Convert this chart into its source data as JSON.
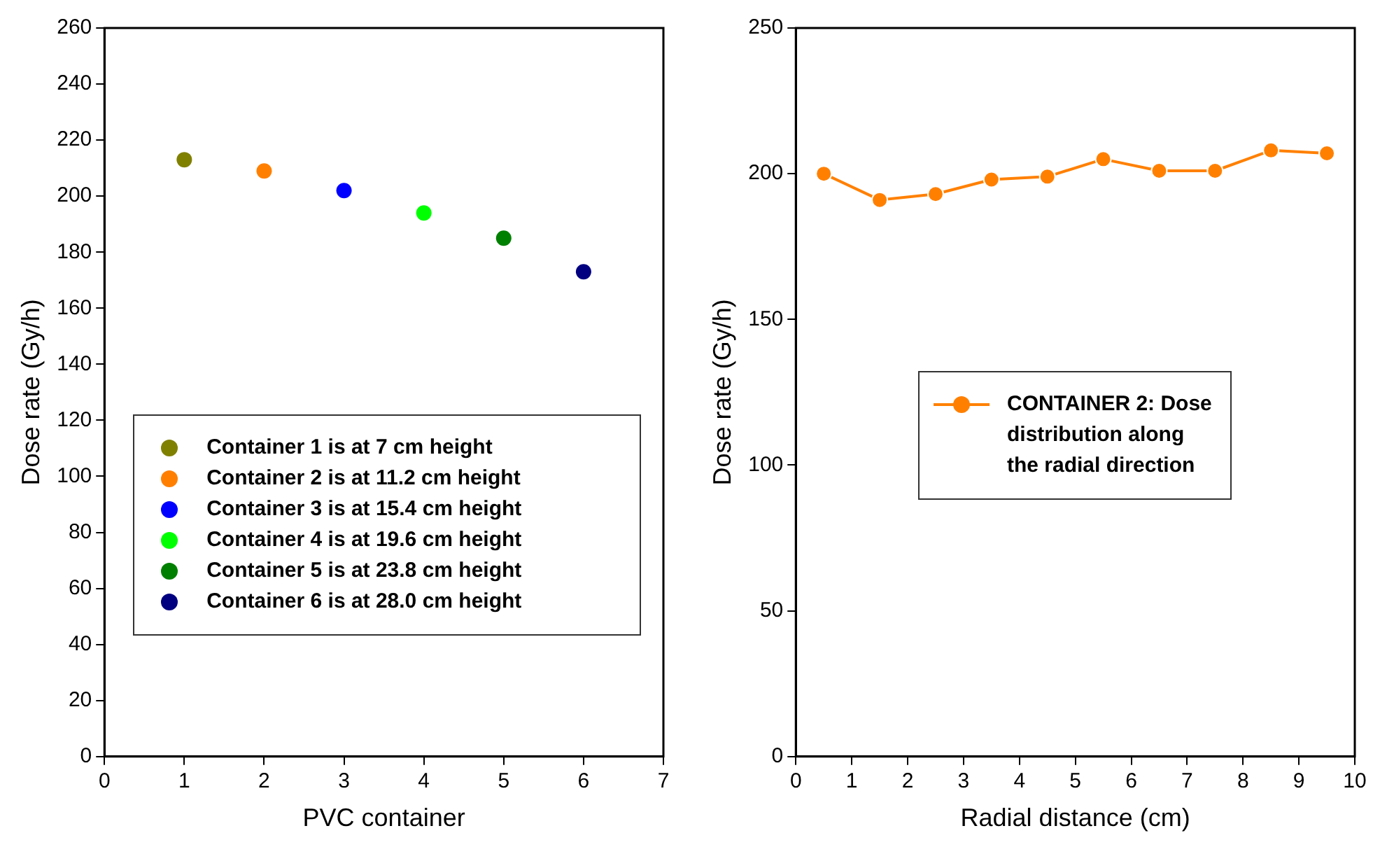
{
  "chart_data": [
    {
      "type": "scatter",
      "xlabel": "PVC container",
      "ylabel": "Dose rate (Gy/h)",
      "xlim": [
        0,
        7
      ],
      "xticks": [
        0,
        1,
        2,
        3,
        4,
        5,
        6,
        7
      ],
      "ylim": [
        0,
        260
      ],
      "yticks": [
        0,
        20,
        40,
        60,
        80,
        100,
        120,
        140,
        160,
        180,
        200,
        220,
        240,
        260
      ],
      "marker": "circle",
      "legend": "bottom",
      "series": [
        {
          "name": "Container 1 is at 7 cm height",
          "color": "#808000",
          "x": [
            1
          ],
          "values": [
            213
          ]
        },
        {
          "name": "Container 2 is at 11.2 cm height",
          "color": "#ff8000",
          "x": [
            2
          ],
          "values": [
            209
          ]
        },
        {
          "name": "Container 3 is at 15.4 cm height",
          "color": "#0000ff",
          "x": [
            3
          ],
          "values": [
            202
          ]
        },
        {
          "name": "Container 4 is at 19.6 cm height",
          "color": "#00ff00",
          "x": [
            4
          ],
          "values": [
            194
          ]
        },
        {
          "name": "Container 5 is at 23.8 cm height",
          "color": "#008000",
          "x": [
            5
          ],
          "values": [
            185
          ]
        },
        {
          "name": "Container 6 is at 28.0 cm height",
          "color": "#000080",
          "x": [
            6
          ],
          "values": [
            173
          ]
        }
      ]
    },
    {
      "type": "line",
      "xlabel": "Radial distance (cm)",
      "ylabel": "Dose rate (Gy/h)",
      "xlim": [
        0,
        10
      ],
      "xticks": [
        0,
        1,
        2,
        3,
        4,
        5,
        6,
        7,
        8,
        9,
        10
      ],
      "ylim": [
        0,
        250
      ],
      "yticks": [
        0,
        50,
        100,
        150,
        200,
        250
      ],
      "marker": "circle",
      "line_style": "solid",
      "legend": "center",
      "x": [
        0.5,
        1.5,
        2.5,
        3.5,
        4.5,
        5.5,
        6.5,
        7.5,
        8.5,
        9.5
      ],
      "series": [
        {
          "name": "CONTAINER 2: Dose distribution along the radial direction",
          "color": "#ff8000",
          "values": [
            200,
            191,
            193,
            198,
            199,
            205,
            201,
            201,
            208,
            207
          ]
        }
      ]
    }
  ]
}
